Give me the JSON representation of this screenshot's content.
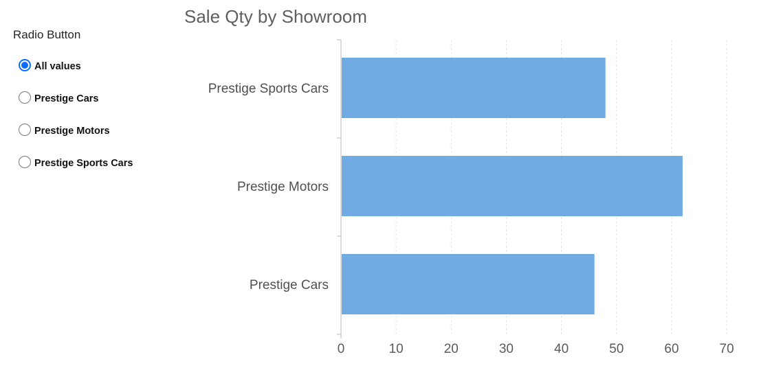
{
  "slicer": {
    "title": "Radio Button",
    "options": [
      {
        "label": "All values",
        "checked": true
      },
      {
        "label": "Prestige Cars",
        "checked": false
      },
      {
        "label": "Prestige Motors",
        "checked": false
      },
      {
        "label": "Prestige Sports Cars",
        "checked": false
      }
    ],
    "accent_color": "#0a6cff"
  },
  "chart_data": {
    "type": "bar",
    "orientation": "horizontal",
    "title": "Sale Qty by Showroom",
    "categories": [
      "Prestige Sports Cars",
      "Prestige Motors",
      "Prestige Cars"
    ],
    "values": [
      48,
      62,
      46
    ],
    "xlim": [
      0,
      70
    ],
    "xticks": [
      0,
      10,
      20,
      30,
      40,
      50,
      60,
      70
    ],
    "xlabel": "",
    "ylabel": "",
    "grid": "vertical-dashed",
    "bar_color": "#71abe4"
  }
}
